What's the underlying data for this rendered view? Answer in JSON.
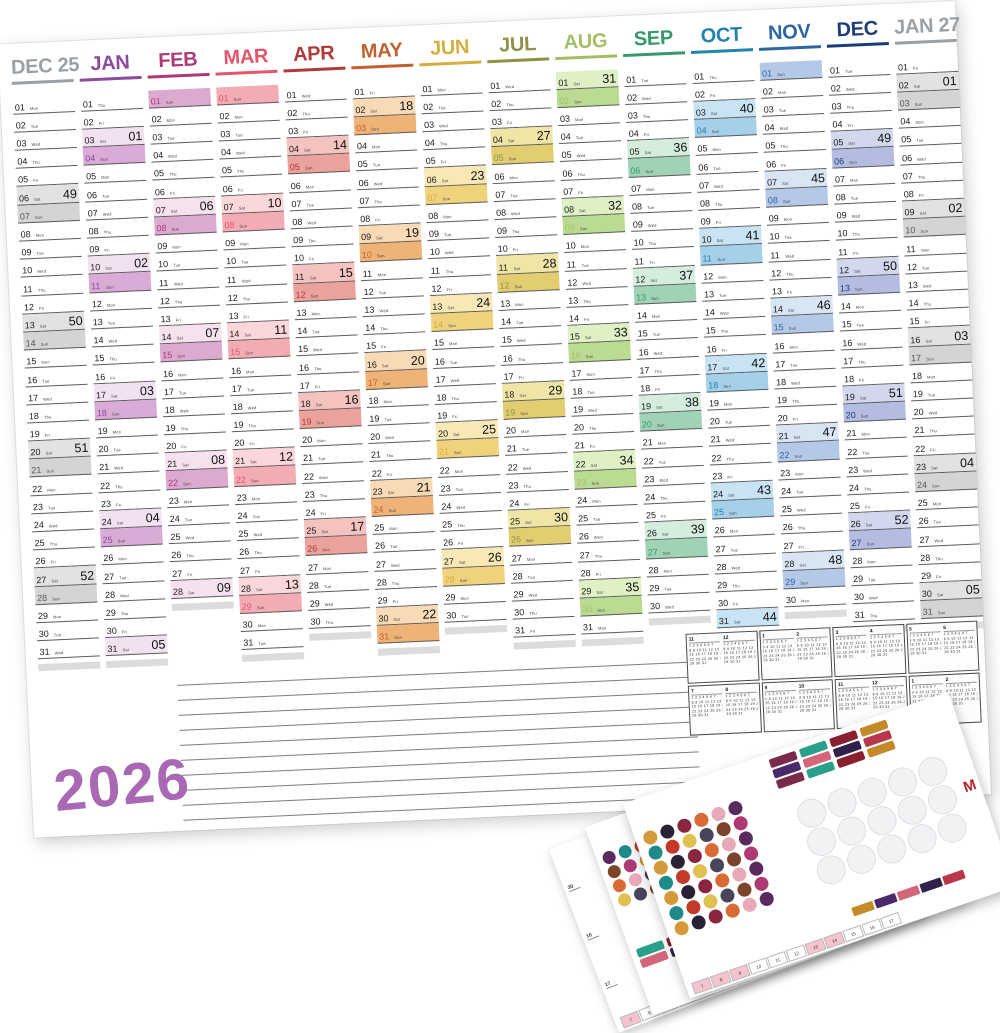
{
  "year_label": "2026",
  "weekday_abbr": [
    "Mon",
    "Tue",
    "Wed",
    "Thu",
    "Fri",
    "Sat",
    "Sun"
  ],
  "months": [
    {
      "label": "DEC 25",
      "color": "#9aa0a3",
      "sun_num": "#55595c",
      "sat": "#e2e2e2",
      "sun": "#d4d4d4",
      "days": 31,
      "first_dow": 0,
      "weeks": {
        "6": "49",
        "13": "50",
        "20": "51",
        "27": "52"
      }
    },
    {
      "label": "JAN",
      "color": "#8b4a9c",
      "sat": "#f2e2f1",
      "sun": "#d9abd6",
      "days": 31,
      "first_dow": 3,
      "weeks": {
        "3": "01",
        "10": "02",
        "17": "03",
        "24": "04",
        "31": "05"
      }
    },
    {
      "label": "FEB",
      "color": "#ad3a72",
      "sat": "#f5e2ee",
      "sun": "#dcaacf",
      "days": 28,
      "first_dow": 6,
      "weeks": {
        "7": "06",
        "14": "07",
        "21": "08",
        "28": "09"
      }
    },
    {
      "label": "MAR",
      "color": "#e3566b",
      "sat": "#fbd7da",
      "sun": "#f3acb4",
      "days": 31,
      "first_dow": 6,
      "weeks": {
        "7": "10",
        "14": "11",
        "21": "12",
        "28": "13"
      }
    },
    {
      "label": "APR",
      "color": "#b03a3a",
      "sat": "#f5c3bf",
      "sun": "#eba29c",
      "days": 30,
      "first_dow": 2,
      "weeks": {
        "4": "14",
        "11": "15",
        "18": "16",
        "25": "17"
      }
    },
    {
      "label": "MAY",
      "color": "#bf6231",
      "sat": "#f8dab6",
      "sun": "#efb277",
      "days": 31,
      "first_dow": 4,
      "weeks": {
        "2": "18",
        "9": "19",
        "16": "20",
        "23": "21",
        "30": "22"
      }
    },
    {
      "label": "JUN",
      "color": "#d4af3f",
      "sat": "#f7e8b6",
      "sun": "#f0d27d",
      "days": 30,
      "first_dow": 0,
      "weeks": {
        "6": "23",
        "13": "24",
        "20": "25",
        "27": "26"
      }
    },
    {
      "label": "JUL",
      "color": "#8f9246",
      "sat": "#eee5a6",
      "sun": "#e2cd70",
      "days": 31,
      "first_dow": 2,
      "weeks": {
        "4": "27",
        "11": "28",
        "18": "29",
        "25": "30"
      }
    },
    {
      "label": "AUG",
      "color": "#a3bf63",
      "sat": "#def0c4",
      "sun": "#bbdb92",
      "days": 31,
      "first_dow": 5,
      "weeks": {
        "1": "31",
        "8": "32",
        "15": "33",
        "22": "34",
        "29": "35"
      }
    },
    {
      "label": "SEP",
      "color": "#369a68",
      "sat": "#d5eddd",
      "sun": "#a0d2b6",
      "days": 30,
      "first_dow": 1,
      "weeks": {
        "5": "36",
        "12": "37",
        "19": "38",
        "26": "39"
      }
    },
    {
      "label": "OCT",
      "color": "#2283ab",
      "sat": "#c8e3f4",
      "sun": "#a5d0ea",
      "days": 31,
      "first_dow": 3,
      "weeks": {
        "3": "40",
        "10": "41",
        "17": "42",
        "24": "43",
        "31": "44"
      }
    },
    {
      "label": "NOV",
      "color": "#2e66a3",
      "sat": "#d8e5f3",
      "sun": "#b4c8e7",
      "days": 30,
      "first_dow": 6,
      "weeks": {
        "7": "45",
        "14": "46",
        "21": "47",
        "28": "48"
      }
    },
    {
      "label": "DEC",
      "color": "#1e3c78",
      "sat": "#d1d7ed",
      "sun": "#b4bde1",
      "days": 31,
      "first_dow": 1,
      "weeks": {
        "5": "49",
        "12": "50",
        "19": "51",
        "26": "52"
      }
    },
    {
      "label": "JAN 27",
      "color": "#9aa0a3",
      "sun_num": "#55595c",
      "sat": "#e2e2e2",
      "sun": "#d4d4d4",
      "days": 31,
      "first_dow": 4,
      "weeks": {
        "2": "01",
        "9": "02",
        "16": "03",
        "23": "04",
        "30": "05"
      }
    }
  ],
  "mini_calendar": {
    "month_numbers": [
      "11",
      "12",
      "1",
      "2",
      "3",
      "4",
      "5",
      "6",
      "7",
      "8",
      "9",
      "10",
      "11",
      "12",
      "1",
      "2"
    ],
    "grid_rows": [
      "1 2 3 4 5 6 7",
      "8 9 10 11 12 13 14",
      "15 16 17 18 19 20 21",
      "22 23 24 25 26 27 28",
      "29 30 31"
    ]
  },
  "sticker_sheets": {
    "circle_colors": [
      "#d49a3a",
      "#2b2135",
      "#8a2540",
      "#d96a35",
      "#e8a9b8",
      "#5a2a5e",
      "#1f8a8a",
      "#c4392a",
      "#e0c050",
      "#46455a",
      "#7a452a",
      "#ad3a72"
    ],
    "rect_colors": [
      "#7a2a4a",
      "#2aa08a",
      "#8a1f2f",
      "#c48a2a",
      "#4a2a6a",
      "#d4667a",
      "#31214a",
      "#b8374a"
    ],
    "strip_numbers": [
      "7",
      "8",
      "9",
      "10",
      "11",
      "12",
      "13",
      "14",
      "15",
      "16",
      "17"
    ],
    "strip_pink_idx": [
      0,
      1,
      2,
      6,
      7
    ],
    "strip_highlight": "#f5c3cf",
    "edge_numbers": [
      "30",
      "10",
      "17"
    ],
    "logo_text": "M",
    "logo_color": "#b5232f"
  }
}
